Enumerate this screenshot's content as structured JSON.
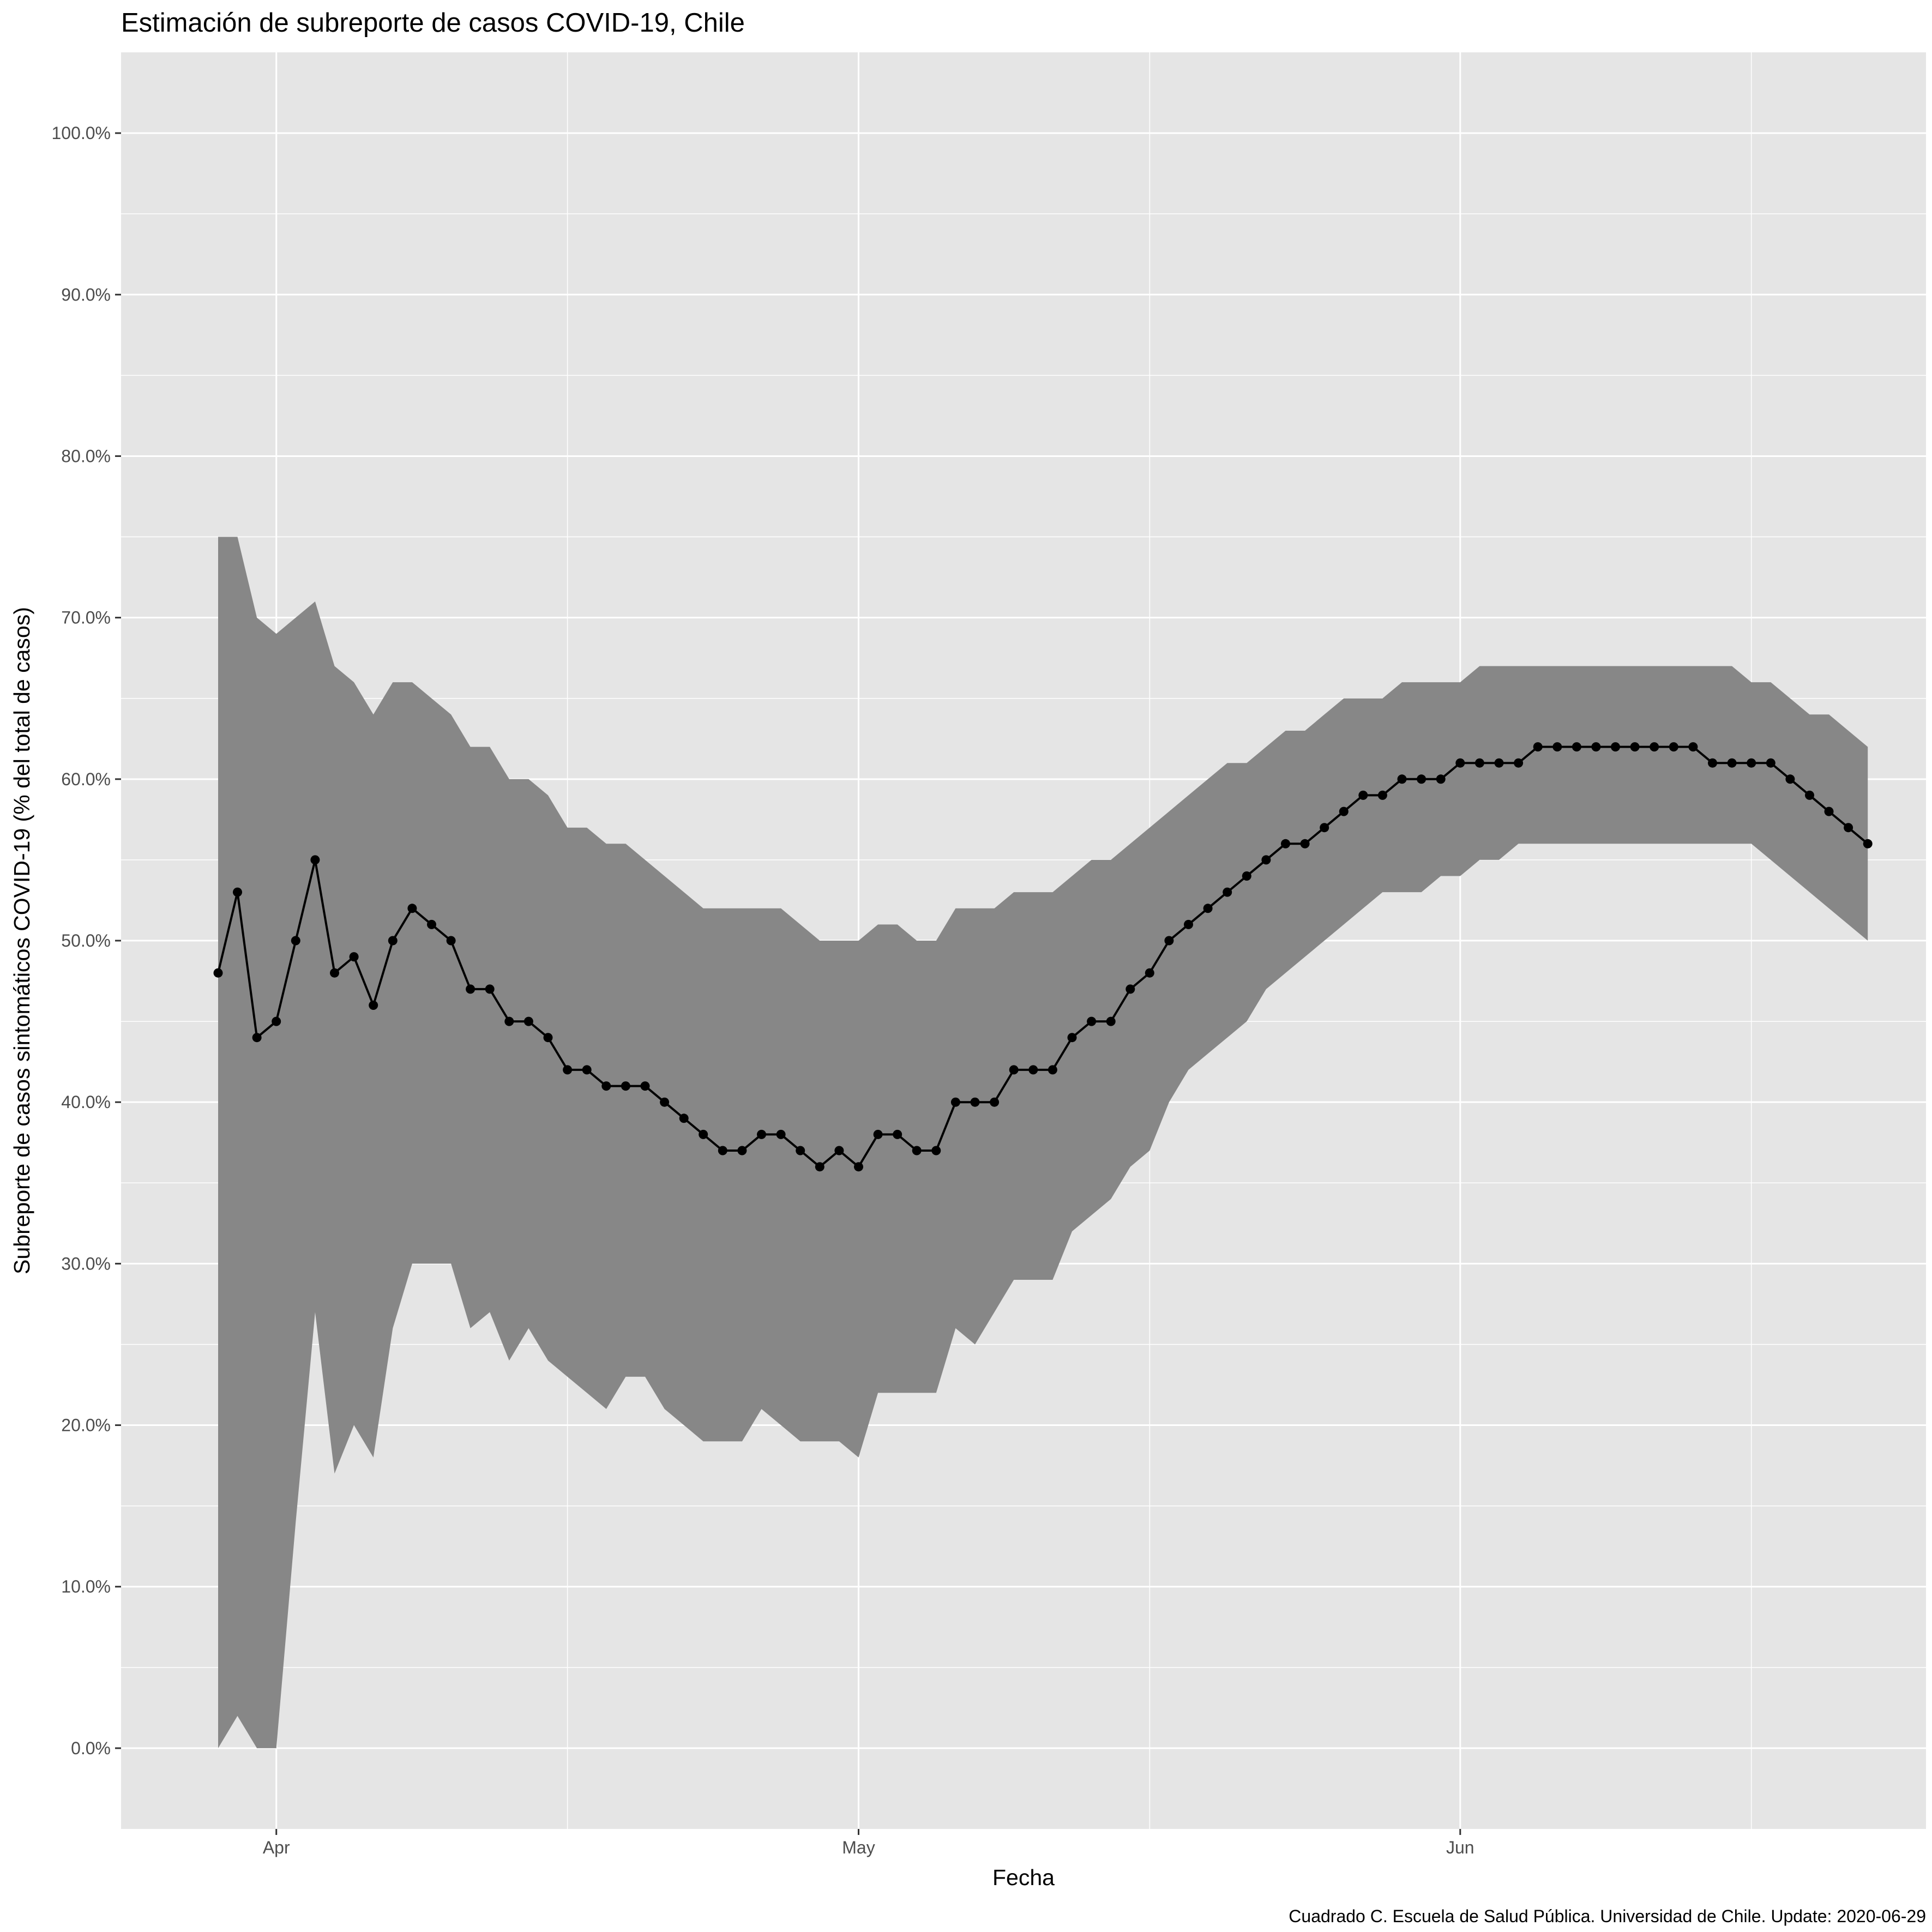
{
  "chart_data": {
    "type": "line",
    "title": "Estimación de subreporte de casos COVID-19, Chile",
    "xlabel": "Fecha",
    "ylabel": "Subreporte de casos sintomáticos COVID-19 (% del total de casos)",
    "caption": "Cuadrado C. Escuela de Salud Pública. Universidad de Chile. Update: 2020-06-29",
    "x_start": "2020-03-29",
    "x_end": "2020-06-22",
    "xlim": [
      "2020-03-24",
      "2020-06-25"
    ],
    "ylim": [
      -5,
      105
    ],
    "y_major_ticks": [
      0,
      10,
      20,
      30,
      40,
      50,
      60,
      70,
      80,
      90,
      100
    ],
    "y_tick_labels": [
      "0.0%",
      "10.0%",
      "20.0%",
      "30.0%",
      "40.0%",
      "50.0%",
      "60.0%",
      "70.0%",
      "80.0%",
      "90.0%",
      "100.0%"
    ],
    "x_major_ticks": [
      {
        "date": "2020-04-01",
        "label": "Apr"
      },
      {
        "date": "2020-05-01",
        "label": "May"
      },
      {
        "date": "2020-06-01",
        "label": "Jun"
      }
    ],
    "x_minor_ticks": [
      "2020-04-16",
      "2020-05-16",
      "2020-06-16"
    ],
    "grid": true,
    "colors": {
      "panel": "#e5e5e5",
      "grid": "#ffffff",
      "ribbon": "#878787",
      "line": "#000000"
    },
    "series": [
      {
        "type": "line+points",
        "values": [
          48,
          53,
          44,
          45,
          50,
          55,
          48,
          49,
          46,
          50,
          52,
          51,
          50,
          47,
          47,
          45,
          45,
          44,
          42,
          42,
          41,
          41,
          41,
          40,
          39,
          38,
          37,
          37,
          38,
          38,
          37,
          36,
          37,
          36,
          38,
          38,
          37,
          37,
          40,
          40,
          40,
          42,
          42,
          42,
          44,
          45,
          45,
          47,
          48,
          50,
          51,
          52,
          53,
          54,
          55,
          56,
          56,
          57,
          58,
          59,
          59,
          60,
          60,
          60,
          61,
          61,
          61,
          61,
          62,
          62,
          62,
          62,
          62,
          62,
          62,
          62,
          62,
          61,
          61,
          61,
          61,
          60,
          59,
          58,
          57,
          56
        ]
      },
      {
        "type": "ribbon",
        "upper": [
          75,
          75,
          70,
          69,
          70,
          71,
          67,
          66,
          64,
          66,
          66,
          65,
          64,
          62,
          62,
          60,
          60,
          59,
          57,
          57,
          56,
          56,
          55,
          54,
          53,
          52,
          52,
          52,
          52,
          52,
          51,
          50,
          50,
          50,
          51,
          51,
          50,
          50,
          52,
          52,
          52,
          53,
          53,
          53,
          54,
          55,
          55,
          56,
          57,
          58,
          59,
          60,
          61,
          61,
          62,
          63,
          63,
          64,
          65,
          65,
          65,
          66,
          66,
          66,
          66,
          67,
          67,
          67,
          67,
          67,
          67,
          67,
          67,
          67,
          67,
          67,
          67,
          67,
          67,
          66,
          66,
          65,
          64,
          64,
          63,
          62
        ],
        "lower": [
          0,
          2,
          0,
          0,
          14,
          27,
          17,
          20,
          18,
          26,
          30,
          30,
          30,
          26,
          27,
          24,
          26,
          24,
          23,
          22,
          21,
          23,
          23,
          21,
          20,
          19,
          19,
          19,
          21,
          20,
          19,
          19,
          19,
          18,
          22,
          22,
          22,
          22,
          26,
          25,
          27,
          29,
          29,
          29,
          32,
          33,
          34,
          36,
          37,
          40,
          42,
          43,
          44,
          45,
          47,
          48,
          49,
          50,
          51,
          52,
          53,
          53,
          53,
          54,
          54,
          55,
          55,
          56,
          56,
          56,
          56,
          56,
          56,
          56,
          56,
          56,
          56,
          56,
          56,
          56,
          55,
          54,
          53,
          52,
          51,
          50
        ]
      }
    ]
  }
}
